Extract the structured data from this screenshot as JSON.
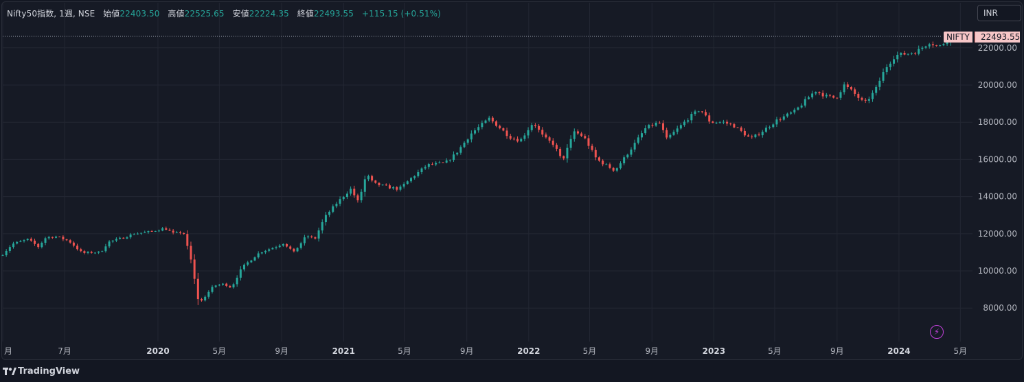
{
  "legend": {
    "symbol": "Nifty50指数, 1週, NSE",
    "open_label": "始値",
    "open": "22403.50",
    "high_label": "高値",
    "high": "22525.65",
    "low_label": "安値",
    "low": "22224.35",
    "close_label": "終値",
    "close": "22493.55",
    "change": "+115.15 (+0.51%)"
  },
  "currency": "INR",
  "last_price_badge": {
    "name": "NIFTY",
    "price": "22493.55"
  },
  "branding": {
    "logo_text": "TradingView",
    "logo_icon": "tradingview-logo-icon",
    "bolt_icon": "lightning-icon"
  },
  "colors": {
    "up": "#26a69a",
    "down": "#ef5350",
    "background": "#161a25",
    "grid": "#232733",
    "badge": "#f7c6c7"
  },
  "chart_data": {
    "type": "candlestick",
    "interval": "1週",
    "grid": true,
    "ylim": [
      6200,
      23100
    ],
    "y_ticks": [
      8000,
      10000,
      12000,
      14000,
      16000,
      18000,
      20000,
      22000
    ],
    "y_tick_labels": [
      "8000.00",
      "10000.00",
      "12000.00",
      "14000.00",
      "16000.00",
      "18000.00",
      "20000.00",
      "22000.00"
    ],
    "x_start": "2019-03-01",
    "x_end": "2024-05-25",
    "x_ticks": [
      {
        "label": "月",
        "date": "2019-03-01",
        "bold": false
      },
      {
        "label": "7月",
        "date": "2019-07-01",
        "bold": false
      },
      {
        "label": "2020",
        "date": "2020-01-01",
        "bold": true
      },
      {
        "label": "5月",
        "date": "2020-05-01",
        "bold": false
      },
      {
        "label": "9月",
        "date": "2020-09-01",
        "bold": false
      },
      {
        "label": "2021",
        "date": "2021-01-01",
        "bold": true
      },
      {
        "label": "5月",
        "date": "2021-05-01",
        "bold": false
      },
      {
        "label": "9月",
        "date": "2021-09-01",
        "bold": false
      },
      {
        "label": "2022",
        "date": "2022-01-01",
        "bold": true
      },
      {
        "label": "5月",
        "date": "2022-05-01",
        "bold": false
      },
      {
        "label": "9月",
        "date": "2022-09-01",
        "bold": false
      },
      {
        "label": "2023",
        "date": "2023-01-01",
        "bold": true
      },
      {
        "label": "5月",
        "date": "2023-05-01",
        "bold": false
      },
      {
        "label": "9月",
        "date": "2023-09-01",
        "bold": false
      },
      {
        "label": "2024",
        "date": "2024-01-01",
        "bold": true
      },
      {
        "label": "5月",
        "date": "2024-05-01",
        "bold": false
      }
    ],
    "last_close": 22493.55,
    "close_anchors": [
      [
        "2019-03-01",
        10900
      ],
      [
        "2019-03-20",
        11450
      ],
      [
        "2019-04-20",
        11700
      ],
      [
        "2019-05-10",
        11300
      ],
      [
        "2019-05-25",
        11800
      ],
      [
        "2019-06-15",
        11850
      ],
      [
        "2019-07-10",
        11600
      ],
      [
        "2019-08-05",
        10950
      ],
      [
        "2019-08-25",
        11000
      ],
      [
        "2019-09-10",
        11000
      ],
      [
        "2019-09-25",
        11550
      ],
      [
        "2019-10-20",
        11750
      ],
      [
        "2019-11-15",
        12000
      ],
      [
        "2019-12-15",
        12100
      ],
      [
        "2020-01-15",
        12300
      ],
      [
        "2020-02-01",
        12000
      ],
      [
        "2020-02-20",
        12100
      ],
      [
        "2020-03-06",
        10600
      ],
      [
        "2020-03-20",
        8500
      ],
      [
        "2020-03-27",
        8400
      ],
      [
        "2020-04-20",
        9200
      ],
      [
        "2020-05-10",
        9300
      ],
      [
        "2020-05-25",
        9100
      ],
      [
        "2020-06-15",
        10200
      ],
      [
        "2020-07-20",
        11000
      ],
      [
        "2020-08-20",
        11300
      ],
      [
        "2020-09-05",
        11500
      ],
      [
        "2020-09-25",
        11000
      ],
      [
        "2020-10-20",
        11900
      ],
      [
        "2020-11-05",
        11700
      ],
      [
        "2020-11-25",
        12900
      ],
      [
        "2020-12-20",
        13700
      ],
      [
        "2021-01-15",
        14400
      ],
      [
        "2021-01-30",
        13700
      ],
      [
        "2021-02-15",
        15200
      ],
      [
        "2021-03-01",
        14700
      ],
      [
        "2021-04-01",
        14500
      ],
      [
        "2021-04-20",
        14400
      ],
      [
        "2021-05-15",
        15000
      ],
      [
        "2021-06-15",
        15700
      ],
      [
        "2021-07-20",
        15800
      ],
      [
        "2021-08-10",
        16300
      ],
      [
        "2021-09-10",
        17400
      ],
      [
        "2021-10-15",
        18200
      ],
      [
        "2021-11-01",
        17800
      ],
      [
        "2021-11-25",
        17200
      ],
      [
        "2021-12-15",
        17000
      ],
      [
        "2022-01-10",
        18000
      ],
      [
        "2022-01-30",
        17200
      ],
      [
        "2022-02-20",
        16800
      ],
      [
        "2022-03-08",
        15900
      ],
      [
        "2022-04-01",
        17500
      ],
      [
        "2022-04-20",
        17200
      ],
      [
        "2022-05-15",
        16000
      ],
      [
        "2022-06-20",
        15400
      ],
      [
        "2022-07-20",
        16500
      ],
      [
        "2022-08-20",
        17700
      ],
      [
        "2022-09-15",
        18000
      ],
      [
        "2022-09-30",
        17100
      ],
      [
        "2022-10-20",
        17600
      ],
      [
        "2022-11-15",
        18300
      ],
      [
        "2022-12-05",
        18700
      ],
      [
        "2022-12-25",
        18000
      ],
      [
        "2023-01-20",
        18000
      ],
      [
        "2023-02-10",
        17800
      ],
      [
        "2023-03-15",
        17100
      ],
      [
        "2023-04-01",
        17400
      ],
      [
        "2023-05-05",
        18100
      ],
      [
        "2023-06-10",
        18600
      ],
      [
        "2023-07-20",
        19700
      ],
      [
        "2023-08-10",
        19400
      ],
      [
        "2023-08-30",
        19300
      ],
      [
        "2023-09-15",
        20000
      ],
      [
        "2023-10-01",
        19650
      ],
      [
        "2023-10-25",
        19000
      ],
      [
        "2023-11-15",
        19700
      ],
      [
        "2023-12-05",
        20900
      ],
      [
        "2023-12-25",
        21600
      ],
      [
        "2024-01-20",
        21700
      ],
      [
        "2024-02-05",
        21800
      ],
      [
        "2024-03-01",
        22300
      ],
      [
        "2024-03-20",
        22050
      ],
      [
        "2024-04-05",
        22400
      ],
      [
        "2024-04-12",
        22493.55
      ]
    ]
  }
}
